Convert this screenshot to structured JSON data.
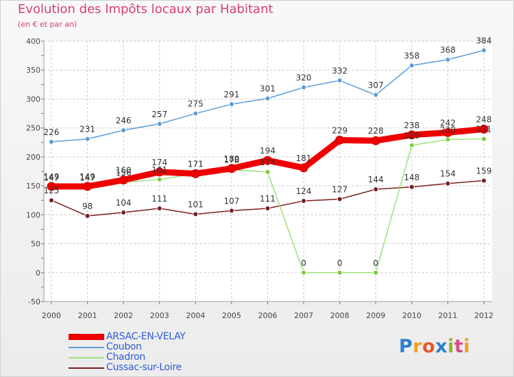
{
  "title": "Evolution des Impôts locaux par Habitant",
  "subtitle": "(en € et par an)",
  "logo": [
    "P",
    "r",
    "o",
    "x",
    "i",
    "t",
    "i"
  ],
  "chart_data": {
    "type": "line",
    "categories": [
      "2000",
      "2001",
      "2002",
      "2003",
      "2004",
      "2005",
      "2006",
      "2007",
      "2008",
      "2009",
      "2010",
      "2011",
      "2012"
    ],
    "ylim": [
      -50,
      400
    ],
    "yticks": [
      -50,
      0,
      50,
      100,
      150,
      200,
      250,
      300,
      350,
      400
    ],
    "grid": true,
    "legend_position": "bottom-left",
    "series": [
      {
        "name": "ARSAC-EN-VELAY",
        "color": "#ee0000",
        "emphasis": true,
        "values": [
          149,
          149,
          160,
          174,
          171,
          180,
          194,
          181,
          229,
          228,
          238,
          242,
          248
        ]
      },
      {
        "name": "Coubon",
        "color": "#5b9bd5",
        "values": [
          226,
          231,
          246,
          257,
          275,
          291,
          301,
          320,
          332,
          307,
          358,
          368,
          384
        ]
      },
      {
        "name": "Chadron",
        "color": "#9be07a",
        "marker_color": "#7ccc3a",
        "values": [
          147,
          147,
          156,
          161,
          171,
          178,
          174,
          0,
          0,
          0,
          220,
          230,
          231
        ]
      },
      {
        "name": "Cussac-sur-Loire",
        "color": "#7a1c1c",
        "values": [
          125,
          98,
          104,
          111,
          101,
          107,
          111,
          124,
          127,
          144,
          148,
          154,
          159
        ]
      }
    ]
  }
}
